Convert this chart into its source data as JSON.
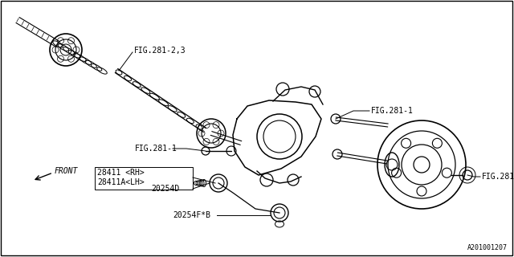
{
  "background_color": "#ffffff",
  "border_color": "#000000",
  "line_color": "#000000",
  "fig_width": 6.4,
  "fig_height": 3.2,
  "dpi": 100,
  "label_fig281_23": "FIG.281-2,3",
  "label_fig281_1": "FIG.281-1",
  "label_28411": "28411 <RH>",
  "label_28411a": "28411A<LH>",
  "label_20254d": "20254D",
  "label_20254fb": "20254F*B",
  "label_front": "FRONT",
  "label_code": "A201001207"
}
